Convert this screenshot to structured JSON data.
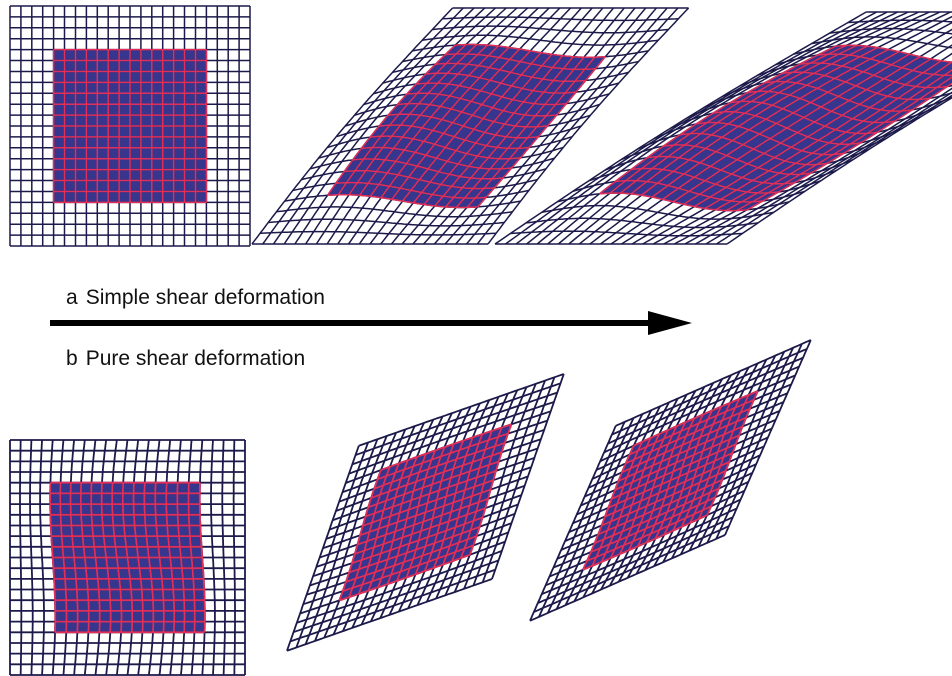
{
  "labels": {
    "a": {
      "letter": "a",
      "text": "Simple shear deformation"
    },
    "b": {
      "letter": "b",
      "text": "Pure shear deformation"
    }
  },
  "arrow": {
    "meaning": "increasing deformation",
    "direction": "right"
  },
  "grid": {
    "cells_outer": 22,
    "cells_inner": 14
  },
  "colors": {
    "grid_line": "#1c1a4a",
    "inner_fill": "#36368f",
    "inner_line": "#e0305a",
    "arrow": "#000000",
    "text": "#111111"
  },
  "rows": [
    {
      "id": "simple-shear",
      "stages": [
        {
          "stage": 1,
          "shear": 0.0,
          "sway": 0.0
        },
        {
          "stage": 2,
          "shear": 0.85,
          "sway": 0.05
        },
        {
          "stage": 3,
          "shear": 1.6,
          "sway": 0.07
        }
      ]
    },
    {
      "id": "pure-shear",
      "stages": [
        {
          "stage": 1,
          "a": 0.0
        },
        {
          "stage": 2,
          "a": 0.35
        },
        {
          "stage": 3,
          "a": 0.44
        }
      ]
    }
  ]
}
